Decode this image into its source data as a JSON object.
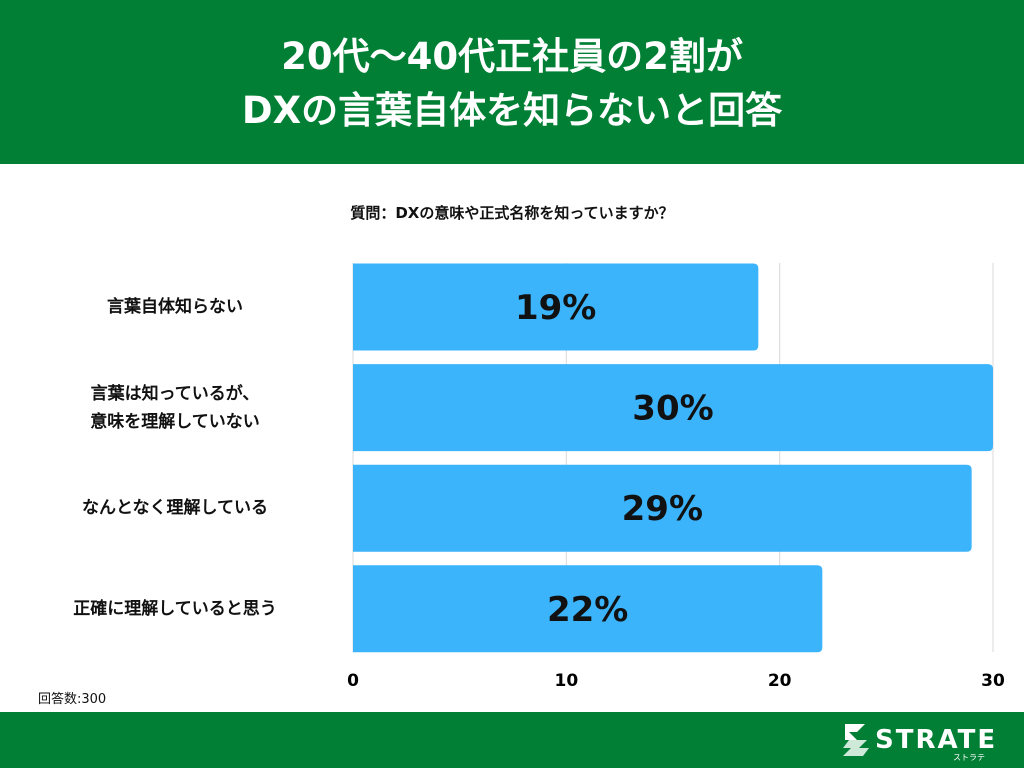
{
  "header": {
    "title_line1": "20代〜40代正社員の2割が",
    "title_line2": "DXの言葉自体を知らないと回答"
  },
  "question": "質問：DXの意味や正式名称を知っていますか？",
  "sample": "回答数:300",
  "logo": {
    "text": "STRATE",
    "sub": "ストラテ"
  },
  "colors": {
    "header": "#007f35",
    "bar": "#3bb4fc"
  },
  "chart_data": {
    "type": "bar",
    "orientation": "horizontal",
    "categories": [
      "言葉自体知らない",
      "言葉は知っているが、\n意味を理解していない",
      "なんとなく理解している",
      "正確に理解していると思う"
    ],
    "values": [
      19,
      30,
      29,
      22
    ],
    "data_labels": [
      "19%",
      "30%",
      "29%",
      "22%"
    ],
    "xlim": [
      0,
      30
    ],
    "xticks": [
      "0",
      "10",
      "20",
      "30"
    ],
    "grid": true
  }
}
